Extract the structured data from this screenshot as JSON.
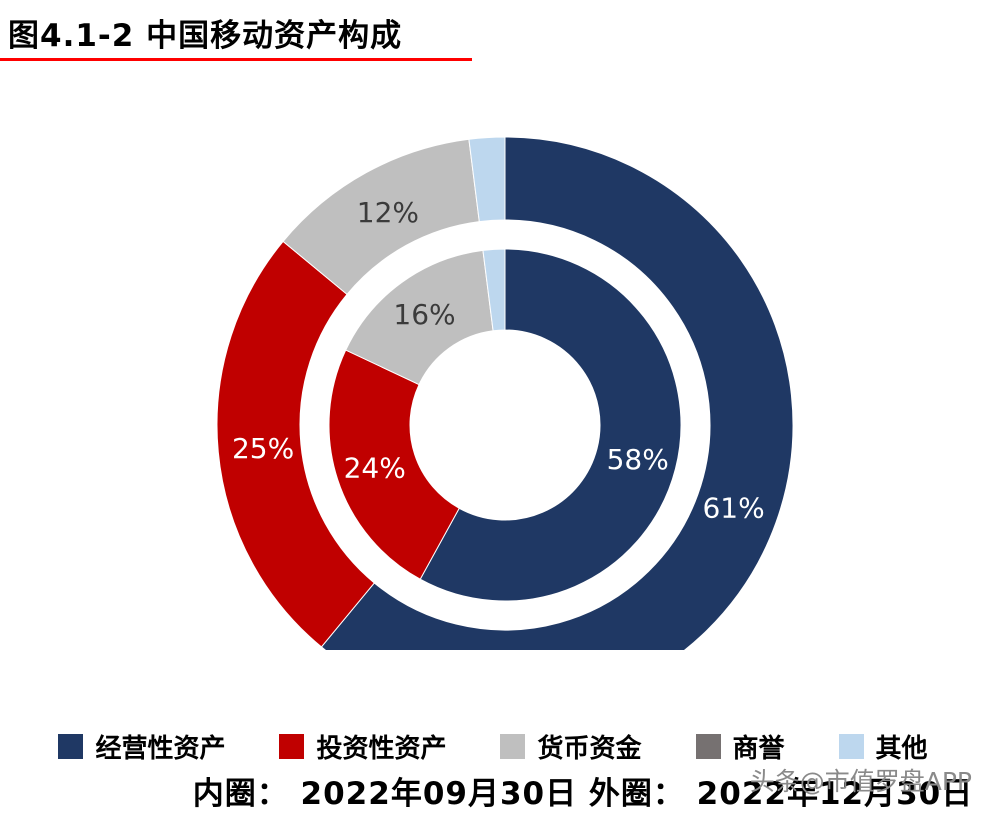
{
  "title": "图4.1-2 中国移动资产构成",
  "watermark": "头条@市值罗盘APP",
  "chart_data": {
    "type": "pie",
    "subtype": "nested_donut",
    "title": "图4.1-2 中国移动资产构成",
    "unit": "%",
    "categories": [
      "经营性资产",
      "投资性资产",
      "货币资金",
      "商誉",
      "其他"
    ],
    "colors": [
      "#1F3864",
      "#C00000",
      "#BFBFBF",
      "#767171",
      "#BDD7EE"
    ],
    "label_text_colors": [
      "#FFFFFF",
      "#FFFFFF",
      "#3B3B3B",
      "#FFFFFF",
      "#3B3B3B"
    ],
    "rings": [
      {
        "name": "内圈",
        "date": "2022年09月30日",
        "position": "inner",
        "values": [
          58,
          24,
          16,
          0,
          2
        ]
      },
      {
        "name": "外圈",
        "date": "2022年12月30日",
        "position": "outer",
        "values": [
          61,
          25,
          12,
          0,
          2
        ]
      }
    ],
    "footer": "内圈： 2022年09月30日 外圈： 2022年12月30日",
    "legend_position": "bottom"
  }
}
